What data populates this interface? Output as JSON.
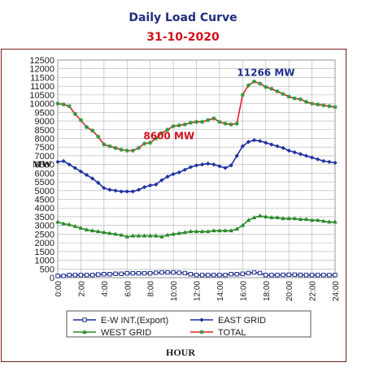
{
  "chart_data": {
    "type": "line",
    "title": "Daily Load Curve",
    "subtitle": "31-10-2020",
    "xlabel": "HOUR",
    "ylabel": "MW",
    "ylim": [
      0,
      12500
    ],
    "xlim": [
      0,
      24
    ],
    "y_ticks": [
      "0",
      "500",
      "1000",
      "1500",
      "2000",
      "2500",
      "3000",
      "3500",
      "4000",
      "4500",
      "5000",
      "5500",
      "6000",
      "6500",
      "7000",
      "7500",
      "8000",
      "8500",
      "9000",
      "9500",
      "10000",
      "10500",
      "11000",
      "11500",
      "12000",
      "12500"
    ],
    "x_ticks": [
      "0:00",
      "2:00",
      "4:00",
      "6:00",
      "8:00",
      "10:00",
      "12:00",
      "14:00",
      "16:00",
      "18:00",
      "20:00",
      "22:00",
      "24:00"
    ],
    "grid": true,
    "legend_position": "bottom",
    "x": [
      0,
      0.5,
      1,
      1.5,
      2,
      2.5,
      3,
      3.5,
      4,
      4.5,
      5,
      5.5,
      6,
      6.5,
      7,
      7.5,
      8,
      8.5,
      9,
      9.5,
      10,
      10.5,
      11,
      11.5,
      12,
      12.5,
      13,
      13.5,
      14,
      14.5,
      15,
      15.5,
      16,
      16.5,
      17,
      17.5,
      18,
      18.5,
      19,
      19.5,
      20,
      20.5,
      21,
      21.5,
      22,
      22.5,
      23,
      23.5,
      24
    ],
    "series": [
      {
        "name": "E-W INT.(Export)",
        "color": "#1f2f8f",
        "marker": "square-open",
        "values": [
          100,
          100,
          150,
          150,
          150,
          150,
          150,
          180,
          200,
          200,
          220,
          220,
          250,
          250,
          250,
          250,
          250,
          280,
          300,
          300,
          300,
          280,
          260,
          200,
          150,
          150,
          150,
          150,
          150,
          150,
          200,
          200,
          220,
          260,
          300,
          260,
          150,
          150,
          150,
          160,
          170,
          170,
          160,
          150,
          150,
          150,
          150,
          150,
          150
        ]
      },
      {
        "name": "EAST GRID",
        "color": "#1f2fa0",
        "marker": "diamond",
        "values": [
          6650,
          6700,
          6500,
          6300,
          6100,
          5900,
          5700,
          5450,
          5150,
          5050,
          5000,
          4950,
          4950,
          4950,
          5050,
          5200,
          5300,
          5350,
          5600,
          5800,
          5950,
          6050,
          6200,
          6350,
          6450,
          6500,
          6550,
          6500,
          6400,
          6300,
          6450,
          7000,
          7550,
          7800,
          7900,
          7850,
          7750,
          7650,
          7550,
          7450,
          7300,
          7200,
          7100,
          7000,
          6900,
          6800,
          6700,
          6650,
          6600
        ]
      },
      {
        "name": "WEST GRID",
        "color": "#2a8a2a",
        "marker": "triangle",
        "values": [
          3200,
          3100,
          3050,
          2950,
          2850,
          2750,
          2700,
          2650,
          2600,
          2550,
          2500,
          2450,
          2350,
          2400,
          2400,
          2400,
          2400,
          2400,
          2350,
          2450,
          2500,
          2550,
          2600,
          2650,
          2650,
          2650,
          2650,
          2700,
          2700,
          2700,
          2700,
          2800,
          3000,
          3300,
          3450,
          3550,
          3500,
          3450,
          3450,
          3400,
          3400,
          3400,
          3350,
          3350,
          3300,
          3300,
          3250,
          3200,
          3200
        ]
      },
      {
        "name": "TOTAL",
        "color": "#e0202a",
        "marker": "star",
        "values": [
          10000,
          9950,
          9850,
          9400,
          9050,
          8650,
          8450,
          8100,
          7650,
          7550,
          7450,
          7350,
          7300,
          7300,
          7450,
          7700,
          7750,
          8000,
          8300,
          8500,
          8700,
          8750,
          8800,
          8900,
          8950,
          8950,
          9050,
          9150,
          8950,
          8850,
          8800,
          8850,
          10500,
          11050,
          11266,
          11150,
          10950,
          10850,
          10700,
          10550,
          10400,
          10300,
          10250,
          10100,
          10000,
          9950,
          9900,
          9850,
          9800
        ]
      }
    ],
    "annotations": [
      {
        "text": "11266 MW",
        "x": 19,
        "y": 11266,
        "color": "#1f2f8f"
      },
      {
        "text": "8600 MW",
        "x": 8.5,
        "y": 8600,
        "color": "#d0101a"
      }
    ]
  }
}
